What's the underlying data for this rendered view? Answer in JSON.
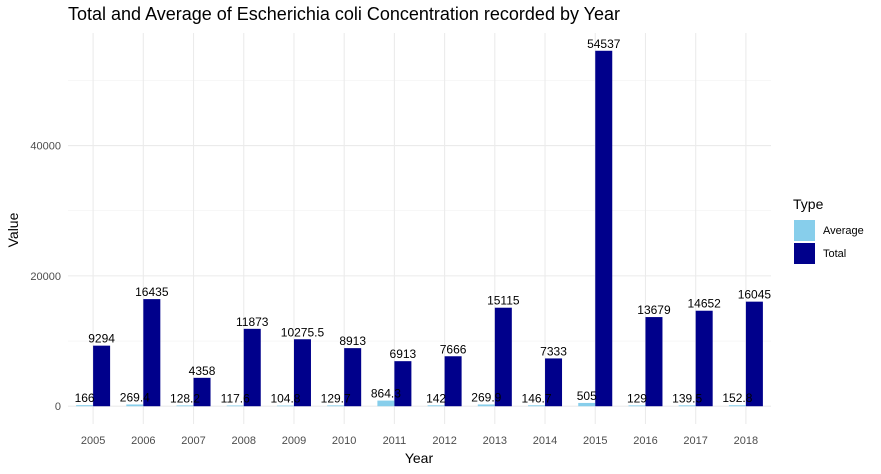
{
  "chart_data": {
    "type": "bar",
    "title": "Total and Average of Escherichia coli Concentration recorded by Year",
    "xlabel": "Year",
    "ylabel": "Value",
    "categories": [
      "2005",
      "2006",
      "2007",
      "2008",
      "2009",
      "2010",
      "2011",
      "2012",
      "2013",
      "2014",
      "2015",
      "2016",
      "2017",
      "2018"
    ],
    "series": [
      {
        "name": "Average",
        "color": "#87CEEB",
        "values": [
          166,
          269.4,
          128.2,
          117.6,
          104.8,
          129.7,
          864.3,
          142,
          269.9,
          146.7,
          505,
          129,
          139.5,
          152.8
        ],
        "labels": [
          "166",
          "269.4",
          "128.2",
          "117.6",
          "104.8",
          "129.7",
          "864.3",
          "142",
          "269.9",
          "146.7",
          "505",
          "129",
          "139.5",
          "152.8"
        ]
      },
      {
        "name": "Total",
        "color": "#00008B",
        "values": [
          9294,
          16435,
          4358,
          11873,
          10275.5,
          8913,
          6913,
          7666,
          15115,
          7333,
          54537,
          13679,
          14652,
          16045
        ],
        "labels": [
          "9294",
          "16435",
          "4358",
          "11873",
          "10275.5",
          "8913",
          "6913",
          "7666",
          "15115",
          "7333",
          "54537",
          "13679",
          "14652",
          "16045"
        ]
      }
    ],
    "y_ticks": [
      0,
      20000,
      40000
    ],
    "ylim": [
      -2727,
      57264
    ],
    "grid": true,
    "legend": {
      "title": "Type",
      "position": "right"
    }
  }
}
